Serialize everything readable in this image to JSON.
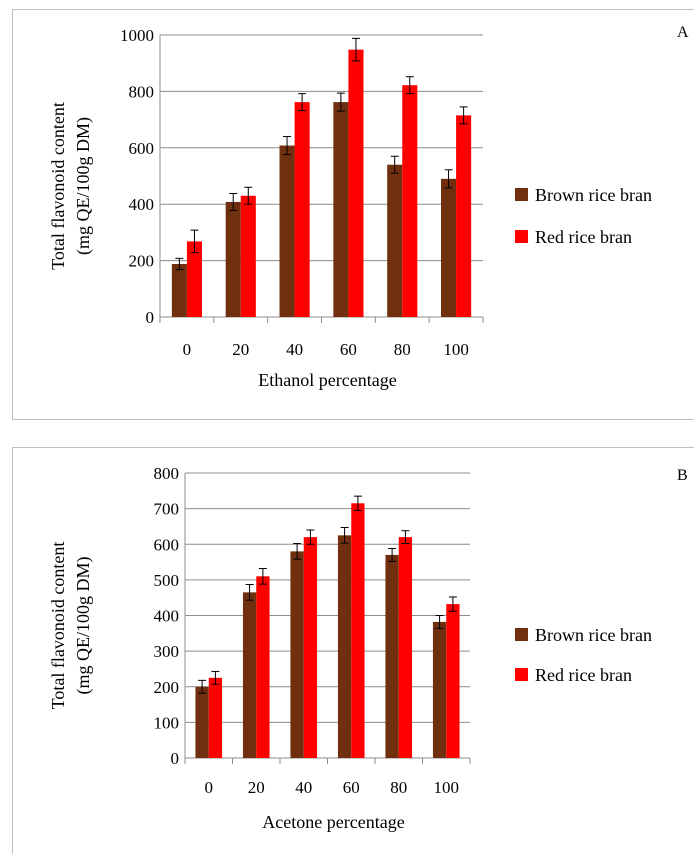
{
  "chart_data": [
    {
      "type": "bar",
      "panel_label": "A",
      "categories": [
        "0",
        "20",
        "40",
        "60",
        "80",
        "100"
      ],
      "series": [
        {
          "name": "Brown rice bran",
          "values": [
            188,
            408,
            608,
            762,
            540,
            490
          ],
          "errors": [
            20,
            30,
            32,
            32,
            30,
            32
          ],
          "color": "#70300F"
        },
        {
          "name": "Red rice bran",
          "values": [
            268,
            430,
            762,
            948,
            822,
            715
          ],
          "errors": [
            40,
            30,
            30,
            40,
            30,
            30
          ],
          "color": "#FF0000"
        }
      ],
      "xlabel": "Ethanol percentage",
      "ylabel": [
        "Total flavonoid content",
        "(mg QE/100g DM)"
      ],
      "ylim": [
        0,
        1000
      ],
      "yticks": [
        0,
        200,
        400,
        600,
        800,
        1000
      ],
      "grid": "horizontal",
      "legend": "right"
    },
    {
      "type": "bar",
      "panel_label": "B",
      "categories": [
        "0",
        "20",
        "40",
        "60",
        "80",
        "100"
      ],
      "series": [
        {
          "name": "Brown rice bran",
          "values": [
            200,
            465,
            580,
            625,
            570,
            382
          ],
          "errors": [
            18,
            22,
            22,
            22,
            18,
            18
          ],
          "color": "#70300F"
        },
        {
          "name": "Red rice bran",
          "values": [
            225,
            510,
            620,
            715,
            620,
            432
          ],
          "errors": [
            18,
            22,
            20,
            20,
            18,
            20
          ],
          "color": "#FF0000"
        }
      ],
      "xlabel": "Acetone percentage",
      "ylabel": [
        "Total flavonoid content",
        "(mg QE/100g DM)"
      ],
      "ylim": [
        0,
        800
      ],
      "yticks": [
        0,
        100,
        200,
        300,
        400,
        500,
        600,
        700,
        800
      ],
      "grid": "horizontal",
      "legend": "right"
    }
  ]
}
